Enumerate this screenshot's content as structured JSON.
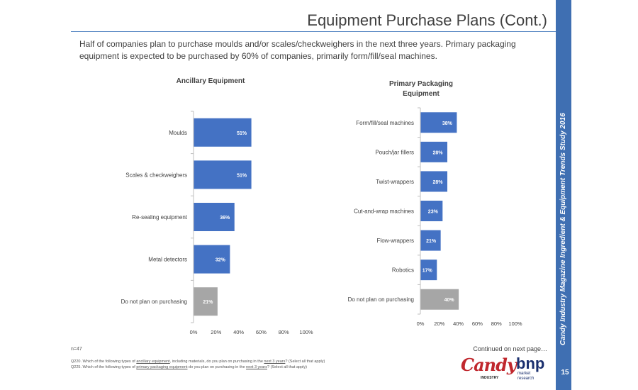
{
  "slide": {
    "title": "Equipment Purchase Plans (Cont.)",
    "intro": "Half of companies plan to purchase moulds and/or scales/checkweighers in the next three years. Primary packaging equipment is expected to be purchased by 60% of companies, primarily form/fill/seal machines.",
    "vertical_caption_italic": "Candy Industry Magazine",
    "vertical_caption_rest": " Ingredient & Equipment Trends Study 2016",
    "page_number": "15"
  },
  "footer": {
    "n": "n=47",
    "continued": "Continued on next page…",
    "q220_prefix": "Q220. Which of the following types of ",
    "q220_link": "ancillary equipment",
    "q220_middle": ", including materials, do you plan on purchasing in the ",
    "q220_link2": "next 3 years",
    "q220_suffix": "? (Select all that apply)",
    "q225_prefix": "Q225. Which of the following types of ",
    "q225_link": "primary packaging equipment",
    "q225_middle": " do you plan on purchasing in the ",
    "q225_link2": "next 3 years",
    "q225_suffix": "? (Select all that apply)"
  },
  "logos": {
    "candy": "Candy",
    "industry": "INDUSTRY",
    "bnp": "bnp",
    "market": "market",
    "research": "research"
  },
  "colors": {
    "bar_blue": "#4472c4",
    "bar_gray": "#a6a6a6",
    "accent": "#3f6fb2"
  },
  "chart_data": [
    {
      "type": "bar",
      "orientation": "horizontal",
      "title": "Ancillary Equipment",
      "categories": [
        "Moulds",
        "Scales & checkweighers",
        "Re-sealing equipment",
        "Metal detectors",
        "Do not plan on purchasing"
      ],
      "values": [
        51,
        51,
        36,
        32,
        21
      ],
      "labels": [
        "51%",
        "51%",
        "36%",
        "32%",
        "21%"
      ],
      "highlight_last": true,
      "xlim": [
        0,
        100
      ],
      "xticks": [
        "0%",
        "20%",
        "40%",
        "60%",
        "80%",
        "100%"
      ]
    },
    {
      "type": "bar",
      "orientation": "horizontal",
      "title": "Primary Packaging Equipment",
      "categories": [
        "Form/fill/seal machines",
        "Pouch/jar fillers",
        "Twist-wrappers",
        "Cut-and-wrap machines",
        "Flow-wrappers",
        "Robotics",
        "Do not plan on purchasing"
      ],
      "values": [
        38,
        28,
        28,
        23,
        21,
        17,
        40
      ],
      "labels": [
        "38%",
        "28%",
        "28%",
        "23%",
        "21%",
        "17%",
        "40%"
      ],
      "highlight_last": true,
      "xlim": [
        0,
        100
      ],
      "xticks": [
        "0%",
        "20%",
        "40%",
        "60%",
        "80%",
        "100%"
      ]
    }
  ]
}
